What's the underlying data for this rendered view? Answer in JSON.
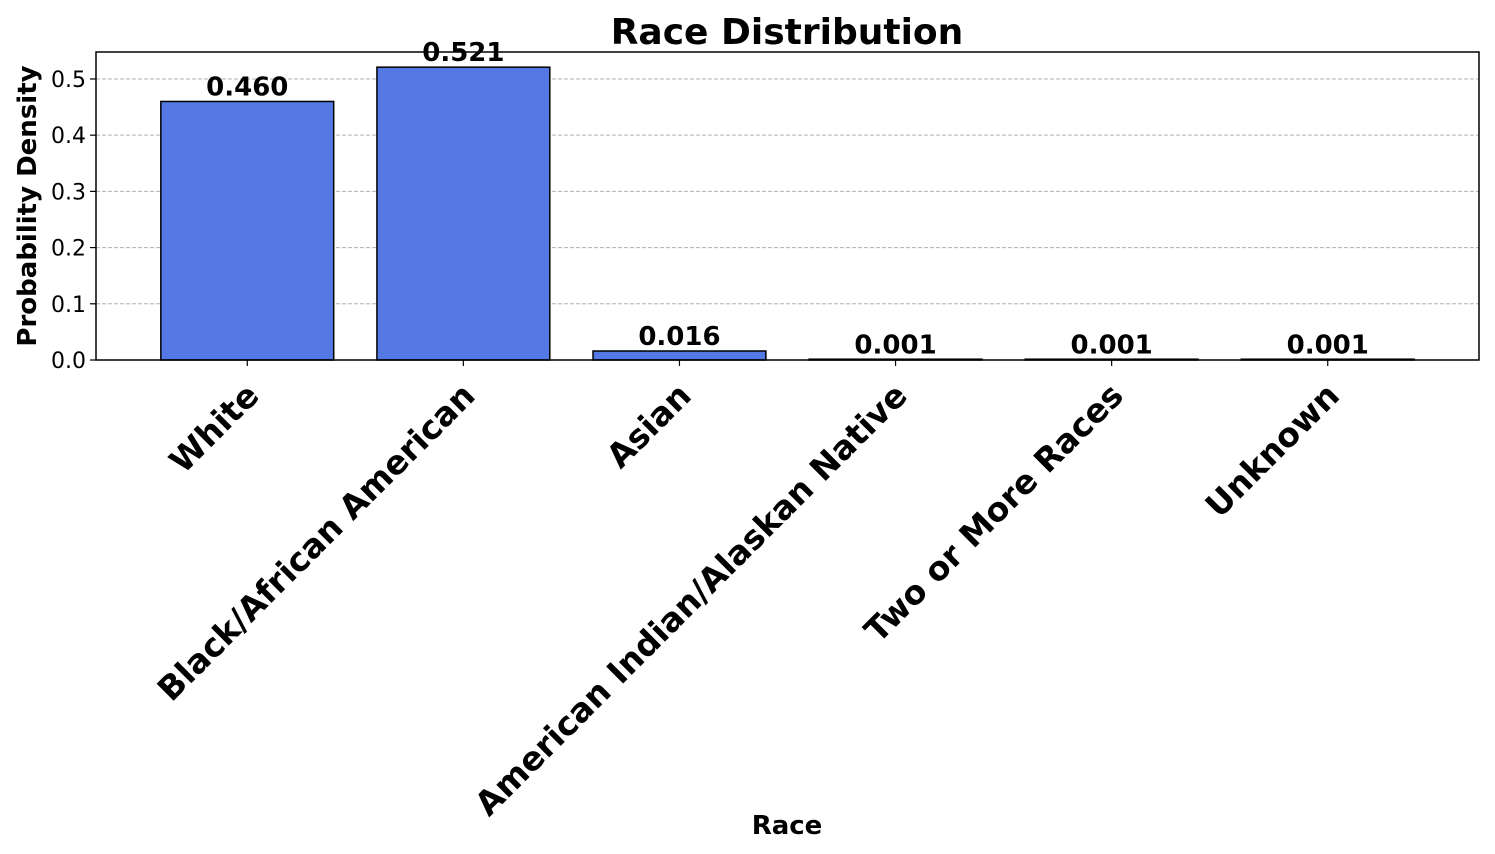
{
  "chart_data": {
    "type": "bar",
    "title": "Race Distribution",
    "xlabel": "Race",
    "ylabel": "Probability Density",
    "categories": [
      "White",
      "Black/African American",
      "Asian",
      "American Indian/Alaskan Native",
      "Two or More Races",
      "Unknown"
    ],
    "values": [
      0.46,
      0.521,
      0.016,
      0.001,
      0.001,
      0.001
    ],
    "value_labels": [
      "0.460",
      "0.521",
      "0.016",
      "0.001",
      "0.001",
      "0.001"
    ],
    "ylim": [
      0,
      0.548
    ],
    "yticks": [
      0.0,
      0.1,
      0.2,
      0.3,
      0.4,
      0.5
    ],
    "ytick_labels": [
      "0.0",
      "0.1",
      "0.2",
      "0.3",
      "0.4",
      "0.5"
    ],
    "grid": "y-dashed",
    "bar_color": "#5479e4",
    "bar_edge_color": "#000000"
  }
}
